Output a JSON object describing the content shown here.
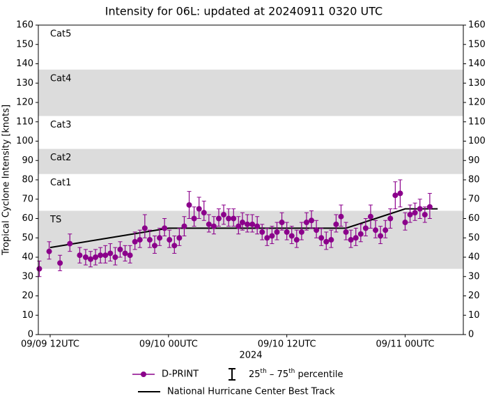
{
  "chart_data": {
    "type": "errorbar",
    "title": "Intensity for 06L: updated at 20240911 0320 UTC",
    "xlabel": "2024",
    "ylabel": "Tropical Cyclone Intensity [knots]",
    "xlim": [
      10.8,
      53.9
    ],
    "xticks": [
      {
        "value": 12,
        "label": "09/09 12UTC"
      },
      {
        "value": 24,
        "label": "09/10 00UTC"
      },
      {
        "value": 36,
        "label": "09/10 12UTC"
      },
      {
        "value": 48,
        "label": "09/11 00UTC"
      }
    ],
    "ylim": [
      0,
      160
    ],
    "yticks": [
      0,
      10,
      20,
      30,
      40,
      50,
      60,
      70,
      80,
      90,
      100,
      110,
      120,
      130,
      140,
      150,
      160
    ],
    "bands": [
      {
        "label": "TS",
        "range": [
          34,
          64
        ],
        "shaded": true
      },
      {
        "label": "Cat1",
        "range": [
          64,
          83
        ],
        "shaded": false
      },
      {
        "label": "Cat2",
        "range": [
          83,
          96
        ],
        "shaded": true
      },
      {
        "label": "Cat3",
        "range": [
          96,
          113
        ],
        "shaded": false
      },
      {
        "label": "Cat4",
        "range": [
          113,
          137
        ],
        "shaded": true
      },
      {
        "label": "Cat5",
        "range": [
          137,
          160
        ],
        "shaded": false
      }
    ],
    "band_color": "#dcdcdc",
    "errorbar_legend": [
      "25",
      "th",
      " – 75",
      "th",
      " percentile"
    ],
    "series": [
      {
        "name": "D-PRINT",
        "type": "errorbar",
        "color": "#8b008b",
        "x": [
          10.9,
          11.9,
          13.0,
          14.0,
          15.0,
          15.6,
          16.1,
          16.6,
          17.1,
          17.6,
          18.1,
          18.6,
          19.1,
          19.6,
          20.1,
          20.6,
          21.1,
          21.6,
          22.1,
          22.6,
          23.1,
          23.6,
          24.1,
          24.6,
          25.1,
          25.6,
          26.1,
          26.6,
          27.1,
          27.6,
          28.1,
          28.6,
          29.1,
          29.6,
          30.1,
          30.6,
          31.1,
          31.5,
          32.0,
          32.5,
          33.0,
          33.5,
          34.0,
          34.5,
          35.0,
          35.5,
          36.0,
          36.5,
          37.0,
          37.5,
          38.0,
          38.5,
          39.0,
          39.5,
          40.0,
          40.5,
          41.0,
          41.5,
          42.0,
          42.5,
          43.0,
          43.5,
          44.0,
          44.5,
          45.0,
          45.5,
          46.0,
          46.5,
          47.0,
          47.5,
          48.0,
          48.5,
          49.0,
          49.5,
          50.0,
          50.5
        ],
        "values": [
          34,
          43,
          37,
          47,
          41,
          40,
          39,
          40,
          41,
          41,
          42,
          40,
          44,
          42,
          41,
          48,
          49,
          55,
          49,
          46,
          50,
          55,
          49,
          46,
          50,
          56,
          67,
          60,
          65,
          63,
          57,
          56,
          60,
          62,
          60,
          60,
          56,
          58,
          57,
          57,
          56,
          53,
          50,
          51,
          53,
          58,
          53,
          51,
          49,
          53,
          58,
          59,
          54,
          50,
          48,
          49,
          57,
          61,
          53,
          49,
          50,
          52,
          55,
          61,
          54,
          51,
          54,
          60,
          72,
          73,
          58,
          62,
          63,
          65,
          62,
          66
        ],
        "q25": [
          30,
          39,
          33,
          43,
          37,
          36,
          35,
          36,
          37,
          37,
          38,
          36,
          40,
          38,
          37,
          44,
          45,
          50,
          45,
          42,
          46,
          51,
          45,
          42,
          46,
          51,
          60,
          56,
          60,
          59,
          53,
          52,
          56,
          57,
          56,
          56,
          52,
          54,
          53,
          53,
          52,
          49,
          46,
          47,
          49,
          54,
          49,
          47,
          45,
          49,
          54,
          55,
          50,
          46,
          44,
          45,
          53,
          56,
          49,
          45,
          46,
          48,
          51,
          55,
          50,
          47,
          50,
          55,
          65,
          66,
          54,
          58,
          59,
          60,
          58,
          60
        ],
        "q75": [
          38,
          48,
          41,
          52,
          45,
          44,
          43,
          44,
          45,
          46,
          47,
          45,
          48,
          46,
          46,
          53,
          54,
          62,
          54,
          51,
          55,
          60,
          54,
          51,
          55,
          61,
          74,
          66,
          71,
          69,
          62,
          61,
          65,
          67,
          65,
          65,
          61,
          63,
          62,
          62,
          61,
          57,
          55,
          56,
          58,
          63,
          58,
          56,
          54,
          58,
          63,
          64,
          59,
          55,
          53,
          54,
          62,
          67,
          58,
          54,
          55,
          57,
          60,
          67,
          59,
          56,
          59,
          65,
          79,
          80,
          63,
          67,
          68,
          70,
          66,
          73
        ]
      },
      {
        "name": "National Hurricane Center Best Track",
        "type": "line",
        "color": "#000000",
        "x": [
          12,
          18,
          24,
          30,
          36,
          42,
          48,
          51.3
        ],
        "values": [
          45,
          50,
          55,
          55,
          55,
          55,
          65,
          65
        ]
      }
    ]
  }
}
